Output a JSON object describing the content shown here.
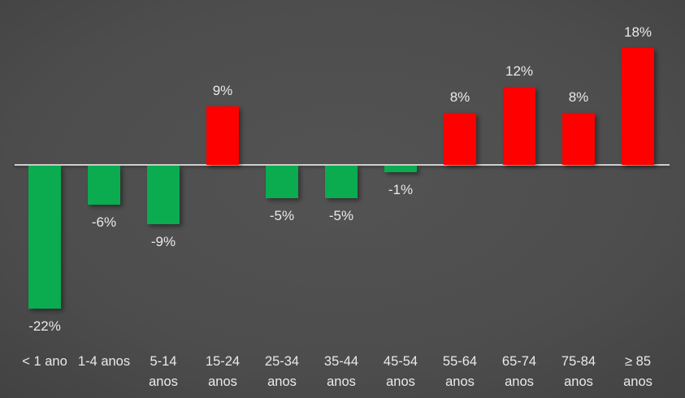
{
  "chart_data": {
    "type": "bar",
    "title": "",
    "xlabel": "",
    "ylabel": "",
    "categories": [
      "< 1 ano",
      "1-4 anos",
      "5-14 anos",
      "15-24 anos",
      "25-34 anos",
      "35-44 anos",
      "45-54 anos",
      "55-64 anos",
      "65-74 anos",
      "75-84 anos",
      "≥ 85 anos"
    ],
    "category_lines": [
      [
        "< 1 ano"
      ],
      [
        "1-4 anos"
      ],
      [
        "5-14",
        "anos"
      ],
      [
        "15-24",
        "anos"
      ],
      [
        "25-34",
        "anos"
      ],
      [
        "35-44",
        "anos"
      ],
      [
        "45-54",
        "anos"
      ],
      [
        "55-64",
        "anos"
      ],
      [
        "65-74",
        "anos"
      ],
      [
        "75-84",
        "anos"
      ],
      [
        "≥ 85",
        "anos"
      ]
    ],
    "values": [
      -22,
      -6,
      -9,
      9,
      -5,
      -5,
      -1,
      8,
      12,
      8,
      18
    ],
    "value_labels": [
      "-22%",
      "-6%",
      "-9%",
      "9%",
      "-5%",
      "-5%",
      "-1%",
      "8%",
      "12%",
      "8%",
      "18%"
    ],
    "ylim": [
      -25,
      20
    ],
    "baseline_value": 0,
    "grid": false,
    "legend": false,
    "colors": {
      "positive_bar": "#fe0000",
      "negative_bar": "#0bab4f",
      "axis_line": "#cfcfcf",
      "label_text": "#eaeaea"
    }
  }
}
